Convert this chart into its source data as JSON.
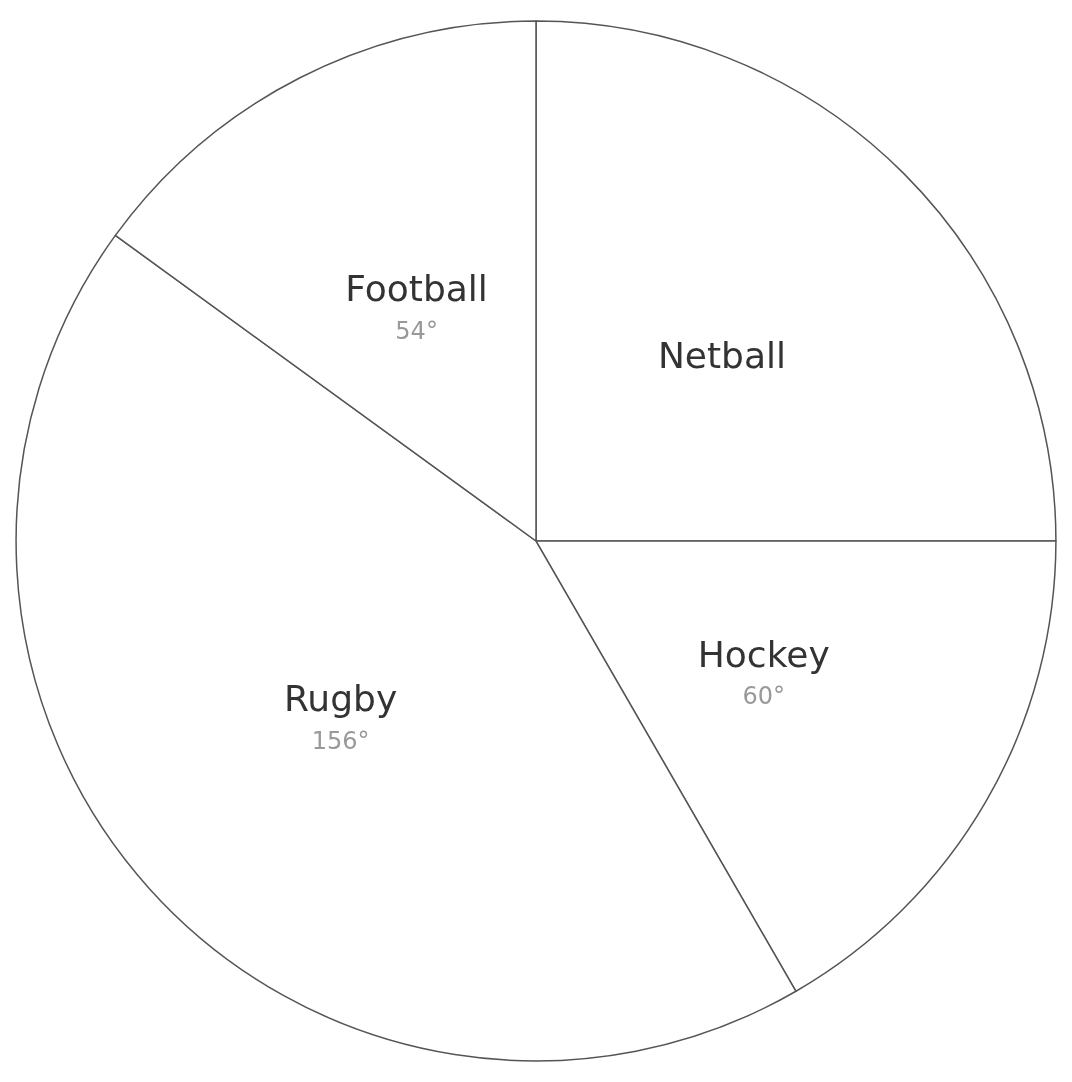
{
  "chart_data": {
    "type": "pie",
    "categories": [
      "Netball",
      "Hockey",
      "Rugby",
      "Football"
    ],
    "values": [
      90,
      60,
      156,
      54
    ],
    "value_labels": [
      null,
      "60°",
      "156°",
      "54°"
    ],
    "colors": [
      "#ffffff",
      "#ffffff",
      "#ffffff",
      "#ffffff"
    ],
    "legend": false
  }
}
